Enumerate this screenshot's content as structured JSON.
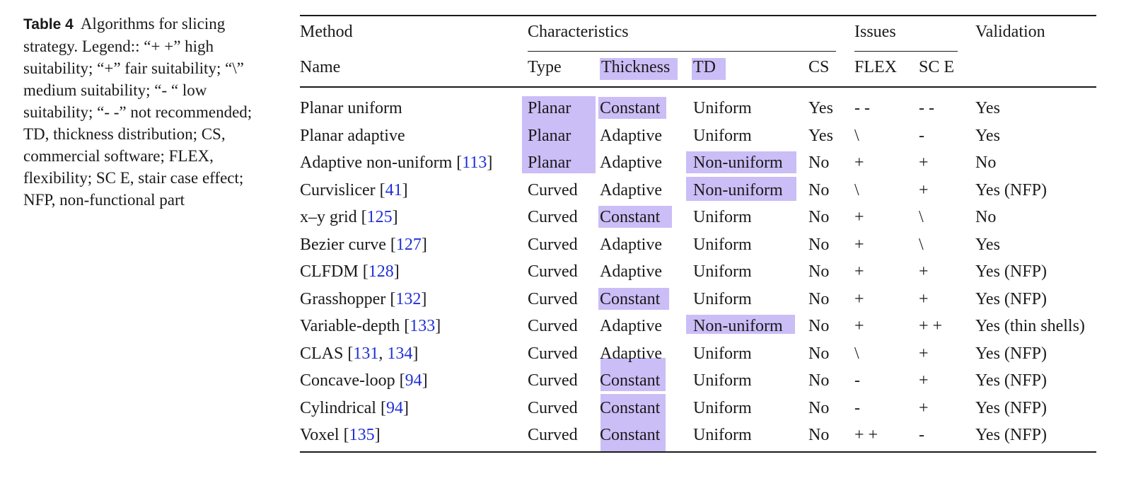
{
  "caption": {
    "label": "Table 4",
    "text": "Algorithms for slicing strategy. Legend:: “+ +” high suitability; “+” fair suitability; “\\” medium suitability; “- “ low suitability; “- -” not recommended; TD, thickness distribution; CS, commercial software; FLEX, flexibility; SC E, stair case effect; NFP, non-functional part"
  },
  "header": {
    "method": "Method",
    "characteristics": "Characteristics",
    "issues": "Issues",
    "validation": "Validation",
    "name": "Name",
    "type": "Type",
    "thickness": "Thickness",
    "td": "TD",
    "cs": "CS",
    "flex": "FLEX",
    "sce": "SC E"
  },
  "rows": [
    {
      "name": "Planar uniform",
      "refs": [],
      "type": "Planar",
      "thickness": "Constant",
      "td": "Uniform",
      "cs": "Yes",
      "flex": "- -",
      "sce": "- -",
      "validation": "Yes"
    },
    {
      "name": "Planar adaptive",
      "refs": [],
      "type": "Planar",
      "thickness": "Adaptive",
      "td": "Uniform",
      "cs": "Yes",
      "flex": "\\",
      "sce": "-",
      "validation": "Yes"
    },
    {
      "name": "Adaptive non-uniform",
      "refs": [
        "113"
      ],
      "type": "Planar",
      "thickness": "Adaptive",
      "td": "Non-uniform",
      "cs": "No",
      "flex": "+",
      "sce": "+",
      "validation": "No"
    },
    {
      "name": "Curvislicer",
      "refs": [
        "41"
      ],
      "type": "Curved",
      "thickness": "Adaptive",
      "td": "Non-uniform",
      "cs": "No",
      "flex": "\\",
      "sce": "+",
      "validation": "Yes (NFP)"
    },
    {
      "name": "x–y grid",
      "refs": [
        "125"
      ],
      "type": "Curved",
      "thickness": "Constant",
      "td": "Uniform",
      "cs": "No",
      "flex": "+",
      "sce": "\\",
      "validation": "No"
    },
    {
      "name": "Bezier curve",
      "refs": [
        "127"
      ],
      "type": "Curved",
      "thickness": "Adaptive",
      "td": "Uniform",
      "cs": "No",
      "flex": "+",
      "sce": "\\",
      "validation": "Yes"
    },
    {
      "name": "CLFDM",
      "refs": [
        "128"
      ],
      "type": "Curved",
      "thickness": "Adaptive",
      "td": "Uniform",
      "cs": "No",
      "flex": "+",
      "sce": "+",
      "validation": "Yes (NFP)"
    },
    {
      "name": "Grasshopper",
      "refs": [
        "132"
      ],
      "type": "Curved",
      "thickness": "Constant",
      "td": "Uniform",
      "cs": "No",
      "flex": "+",
      "sce": "+",
      "validation": "Yes (NFP)"
    },
    {
      "name": "Variable-depth",
      "refs": [
        "133"
      ],
      "type": "Curved",
      "thickness": "Adaptive",
      "td": "Non-uniform",
      "cs": "No",
      "flex": "+",
      "sce": "+ +",
      "validation": "Yes (thin shells)"
    },
    {
      "name": "CLAS",
      "refs": [
        "131",
        "134"
      ],
      "type": "Curved",
      "thickness": "Adaptive",
      "td": "Uniform",
      "cs": "No",
      "flex": "\\",
      "sce": "+",
      "validation": "Yes (NFP)"
    },
    {
      "name": "Concave-loop",
      "refs": [
        "94"
      ],
      "type": "Curved",
      "thickness": "Constant",
      "td": "Uniform",
      "cs": "No",
      "flex": "-",
      "sce": "+",
      "validation": "Yes (NFP)"
    },
    {
      "name": "Cylindrical",
      "refs": [
        "94"
      ],
      "type": "Curved",
      "thickness": "Constant",
      "td": "Uniform",
      "cs": "No",
      "flex": "-",
      "sce": "+",
      "validation": "Yes (NFP)"
    },
    {
      "name": "Voxel",
      "refs": [
        "135"
      ],
      "type": "Curved",
      "thickness": "Constant",
      "td": "Uniform",
      "cs": "No",
      "flex": "+ +",
      "sce": "-",
      "validation": "Yes (NFP)"
    }
  ],
  "highlight_color": "#cbbdf6",
  "link_color": "#1f2fd6"
}
